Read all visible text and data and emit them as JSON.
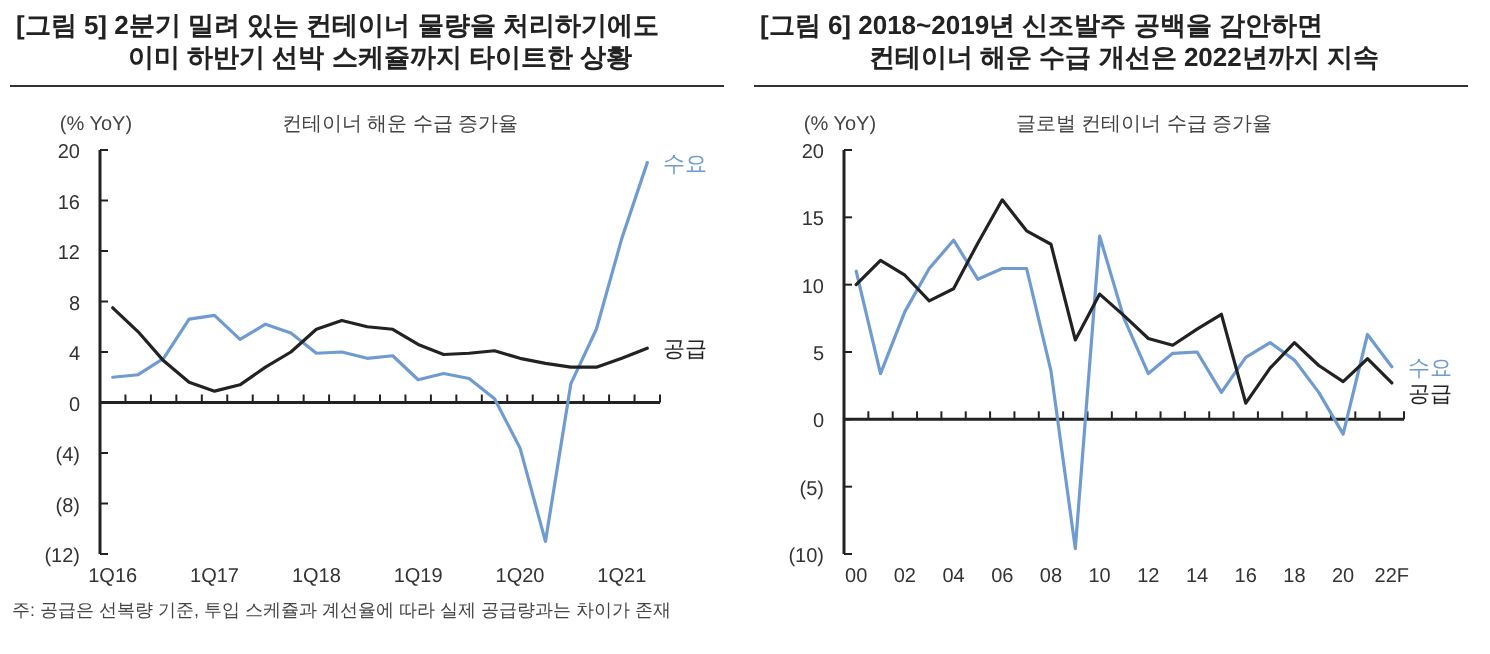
{
  "chart_data": [
    {
      "type": "line",
      "title": "[그림 5] 2분기 밀려 있는 컨테이너 물량을 처리하기에도\n이미 하반기 선박 스케쥴까지 타이트한 상황",
      "subtitle": "컨테이너 해운 수급 증가율",
      "ylabel": "(% YoY)",
      "categories": [
        "1Q16",
        null,
        null,
        null,
        "1Q17",
        null,
        null,
        null,
        "1Q18",
        null,
        null,
        null,
        "1Q19",
        null,
        null,
        null,
        "1Q20",
        null,
        null,
        null,
        "1Q21",
        null
      ],
      "ylim": [
        -12,
        20
      ],
      "yticks": [
        {
          "value": -12,
          "label": "(12)"
        },
        {
          "value": -8,
          "label": "(8)"
        },
        {
          "value": -4,
          "label": "(4)"
        },
        0,
        4,
        8,
        12,
        16,
        20
      ],
      "series": [
        {
          "name": "수요",
          "color": "#6f9bd1",
          "values": [
            2.0,
            2.2,
            3.5,
            6.6,
            6.9,
            5.0,
            6.2,
            5.5,
            3.9,
            4.0,
            3.5,
            3.7,
            1.8,
            2.3,
            1.9,
            0.3,
            -3.6,
            -11.0,
            1.5,
            5.8,
            13.0,
            19.0
          ]
        },
        {
          "name": "공급",
          "color": "#222222",
          "values": [
            7.5,
            5.6,
            3.3,
            1.6,
            0.9,
            1.4,
            2.8,
            4.0,
            5.8,
            6.5,
            6.0,
            5.8,
            4.6,
            3.8,
            3.9,
            4.1,
            3.5,
            3.1,
            2.8,
            2.8,
            3.5,
            4.3
          ]
        }
      ],
      "annotations": [
        "주: 공급은 선복량 기준, 투입 스케쥴과 계선율에 따라 실제 공급량과는 차이가 존재"
      ]
    },
    {
      "type": "line",
      "title": "[그림 6] 2018~2019년 신조발주 공백을 감안하면\n컨테이너 해운 수급 개선은 2022년까지 지속",
      "subtitle": "글로벌 컨테이너 수급 증가율",
      "ylabel": "(% YoY)",
      "categories": [
        "00",
        null,
        "02",
        null,
        "04",
        null,
        "06",
        null,
        "08",
        null,
        "10",
        null,
        "12",
        null,
        "14",
        null,
        "16",
        null,
        "18",
        null,
        "20",
        null,
        "22F"
      ],
      "ylim": [
        -10,
        20
      ],
      "yticks": [
        {
          "value": -10,
          "label": "(10)"
        },
        {
          "value": -5,
          "label": "(5)"
        },
        0,
        5,
        10,
        15,
        20
      ],
      "series": [
        {
          "name": "수요",
          "color": "#6f9bd1",
          "values": [
            11.0,
            3.4,
            8.0,
            11.2,
            13.3,
            10.4,
            11.2,
            11.2,
            3.6,
            -9.6,
            13.6,
            7.5,
            3.4,
            4.9,
            5.0,
            2.0,
            4.6,
            5.7,
            4.4,
            2.0,
            -1.1,
            6.3,
            3.9
          ]
        },
        {
          "name": "공급",
          "color": "#222222",
          "values": [
            10.0,
            11.8,
            10.7,
            8.8,
            9.7,
            13.1,
            16.3,
            14.0,
            13.0,
            5.9,
            9.3,
            7.7,
            6.0,
            5.5,
            6.7,
            7.8,
            1.2,
            3.8,
            5.7,
            4.0,
            2.8,
            4.5,
            2.7
          ]
        }
      ]
    }
  ]
}
